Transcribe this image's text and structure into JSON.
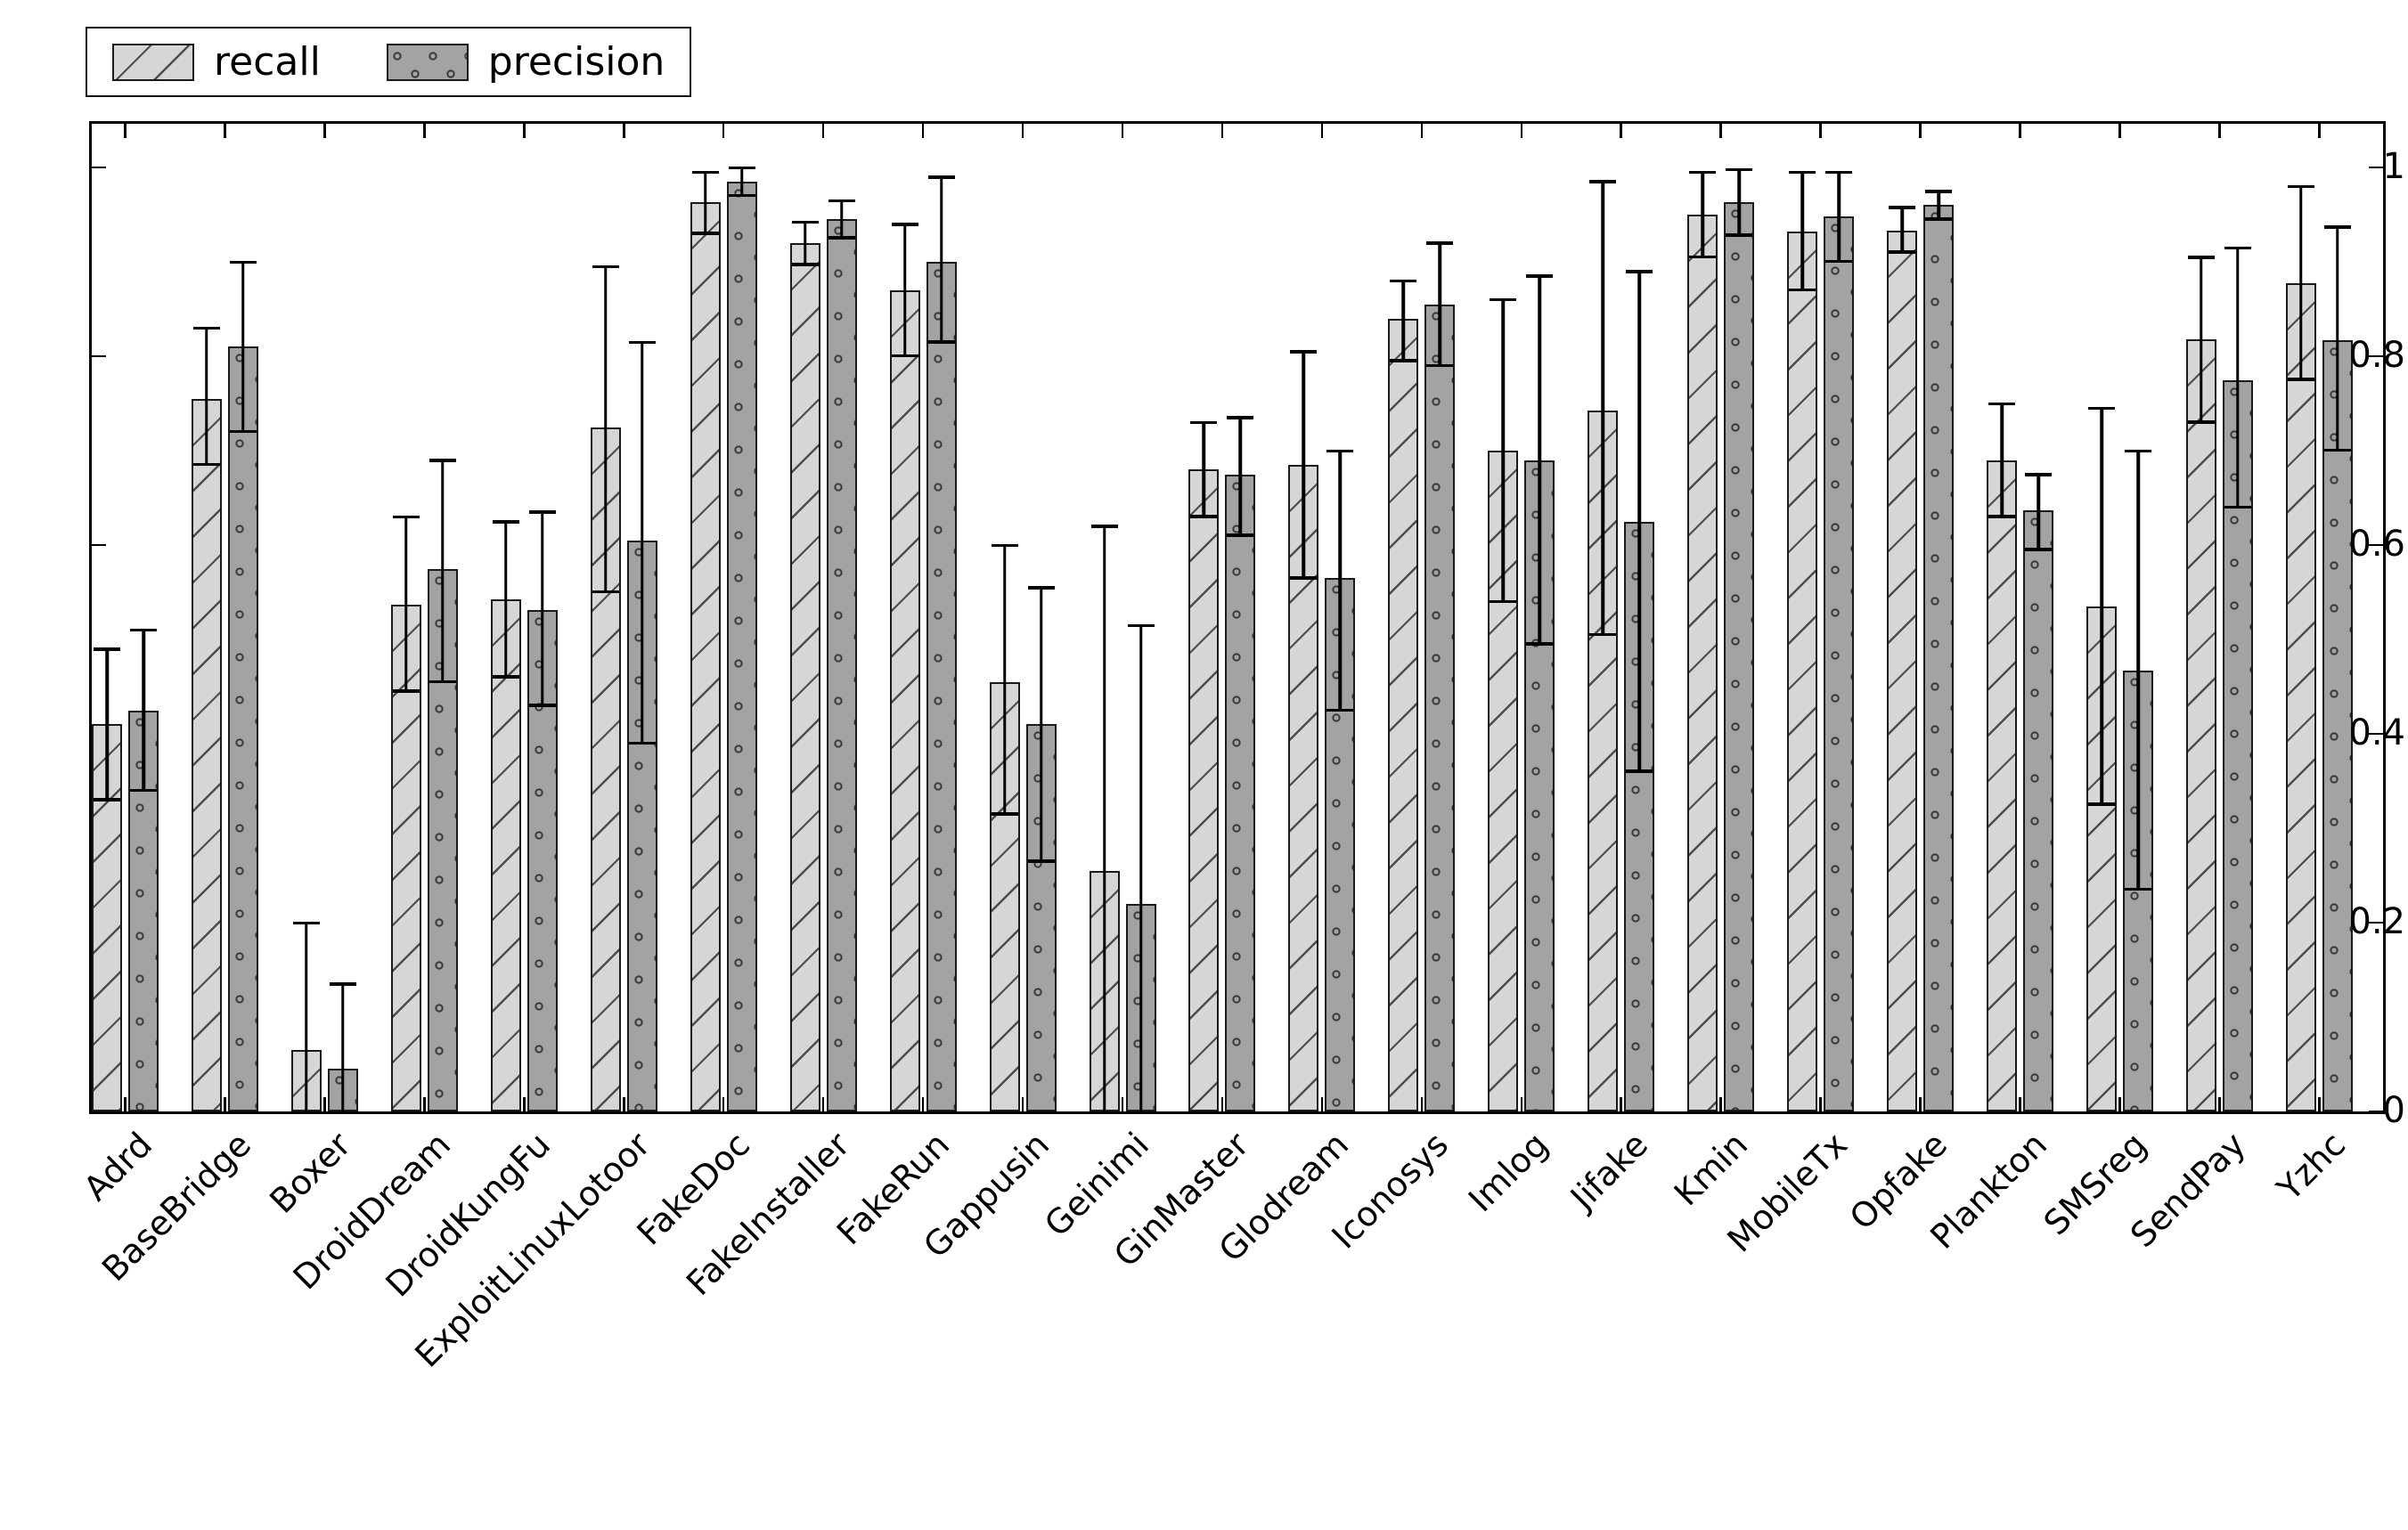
{
  "figure": {
    "background": "#ffffff",
    "bar_border_color": "#1a1a1a",
    "recall_fill": "#d6d6d6",
    "precision_fill": "#a3a3a3",
    "hatch_recall": "diagonal-slash",
    "hatch_precision": "dots"
  },
  "legend": {
    "position": "top-left",
    "items": [
      {
        "label": "recall",
        "swatch": "light-gray-diagonal-hatch"
      },
      {
        "label": "precision",
        "swatch": "dark-gray-dotted"
      }
    ]
  },
  "chart_data": {
    "type": "bar",
    "title": "",
    "xlabel": "",
    "ylabel": "",
    "grid": false,
    "legend_position": "top-left",
    "ylim": [
      0,
      1.046
    ],
    "yticks": [
      0,
      0.2,
      0.4,
      0.6,
      0.8,
      1
    ],
    "ytick_labels": [
      "0",
      "0.2",
      "0.4",
      "0.6",
      "0.8",
      "1"
    ],
    "categories": [
      "Adrd",
      "BaseBridge",
      "Boxer",
      "DroidDream",
      "DroidKungFu",
      "ExploitLinuxLotoor",
      "FakeDoc",
      "FakeInstaller",
      "FakeRun",
      "Gappusin",
      "Geinimi",
      "GinMaster",
      "Glodream",
      "Iconosys",
      "Imlog",
      "Jifake",
      "Kmin",
      "MobileTx",
      "Opfake",
      "Plankton",
      "SMSreg",
      "SendPay",
      "Yzhc"
    ],
    "series": [
      {
        "name": "recall",
        "values": [
          0.41,
          0.755,
          0.065,
          0.537,
          0.542,
          0.725,
          0.963,
          0.92,
          0.87,
          0.455,
          0.255,
          0.68,
          0.685,
          0.84,
          0.7,
          0.742,
          0.95,
          0.932,
          0.933,
          0.69,
          0.535,
          0.818,
          0.877
        ],
        "err_low": [
          0.33,
          0.685,
          -0.07,
          0.445,
          0.46,
          0.55,
          0.93,
          0.897,
          0.8,
          0.315,
          -0.11,
          0.63,
          0.565,
          0.795,
          0.54,
          0.505,
          0.905,
          0.87,
          0.91,
          0.63,
          0.325,
          0.73,
          0.775
        ],
        "err_high": [
          0.49,
          0.83,
          0.2,
          0.63,
          0.625,
          0.895,
          0.995,
          0.942,
          0.94,
          0.6,
          0.62,
          0.73,
          0.805,
          0.88,
          0.86,
          0.985,
          0.995,
          0.995,
          0.958,
          0.75,
          0.745,
          0.905,
          0.98
        ]
      },
      {
        "name": "precision",
        "values": [
          0.425,
          0.81,
          0.045,
          0.575,
          0.531,
          0.605,
          0.985,
          0.945,
          0.9,
          0.41,
          0.22,
          0.675,
          0.565,
          0.855,
          0.69,
          0.625,
          0.963,
          0.948,
          0.96,
          0.637,
          0.467,
          0.775,
          0.817
        ],
        "err_low": [
          0.34,
          0.72,
          -0.045,
          0.455,
          0.43,
          0.39,
          0.97,
          0.925,
          0.815,
          0.265,
          -0.075,
          0.61,
          0.425,
          0.79,
          0.495,
          0.36,
          0.928,
          0.9,
          0.945,
          0.595,
          0.235,
          0.64,
          0.7
        ],
        "err_high": [
          0.51,
          0.9,
          0.135,
          0.69,
          0.635,
          0.815,
          1.0,
          0.965,
          0.99,
          0.555,
          0.515,
          0.735,
          0.7,
          0.92,
          0.885,
          0.89,
          0.998,
          0.995,
          0.975,
          0.675,
          0.7,
          0.915,
          0.937
        ]
      }
    ]
  }
}
